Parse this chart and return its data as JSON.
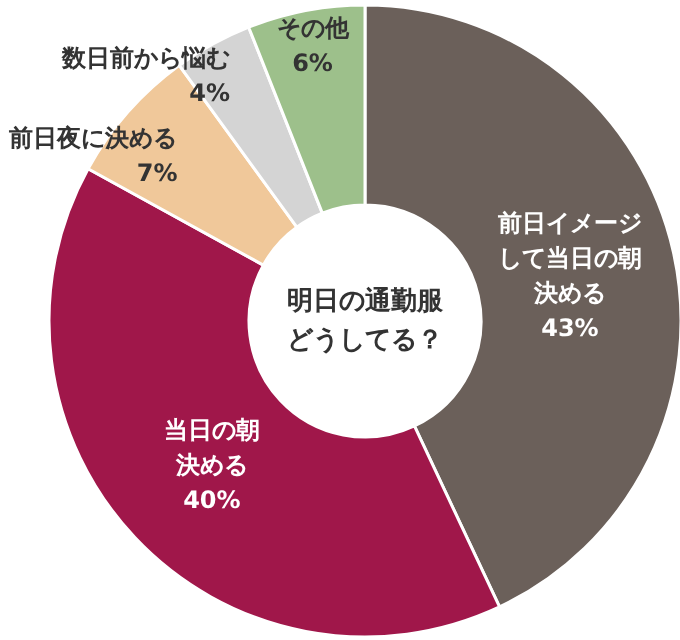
{
  "chart_data": {
    "type": "donut",
    "title": "明日の通勤服どうしてる？",
    "categories": [
      "前日イメージして当日の朝決める",
      "当日の朝決める",
      "前日夜に決める",
      "数日前から悩む",
      "その他"
    ],
    "values": [
      43,
      40,
      7,
      4,
      6
    ],
    "value_labels": [
      "43%",
      "40%",
      "7%",
      "4%",
      "6%"
    ],
    "colors": [
      "#6b605a",
      "#a0174a",
      "#f0c89a",
      "#d4d4d4",
      "#9dc08b"
    ]
  }
}
